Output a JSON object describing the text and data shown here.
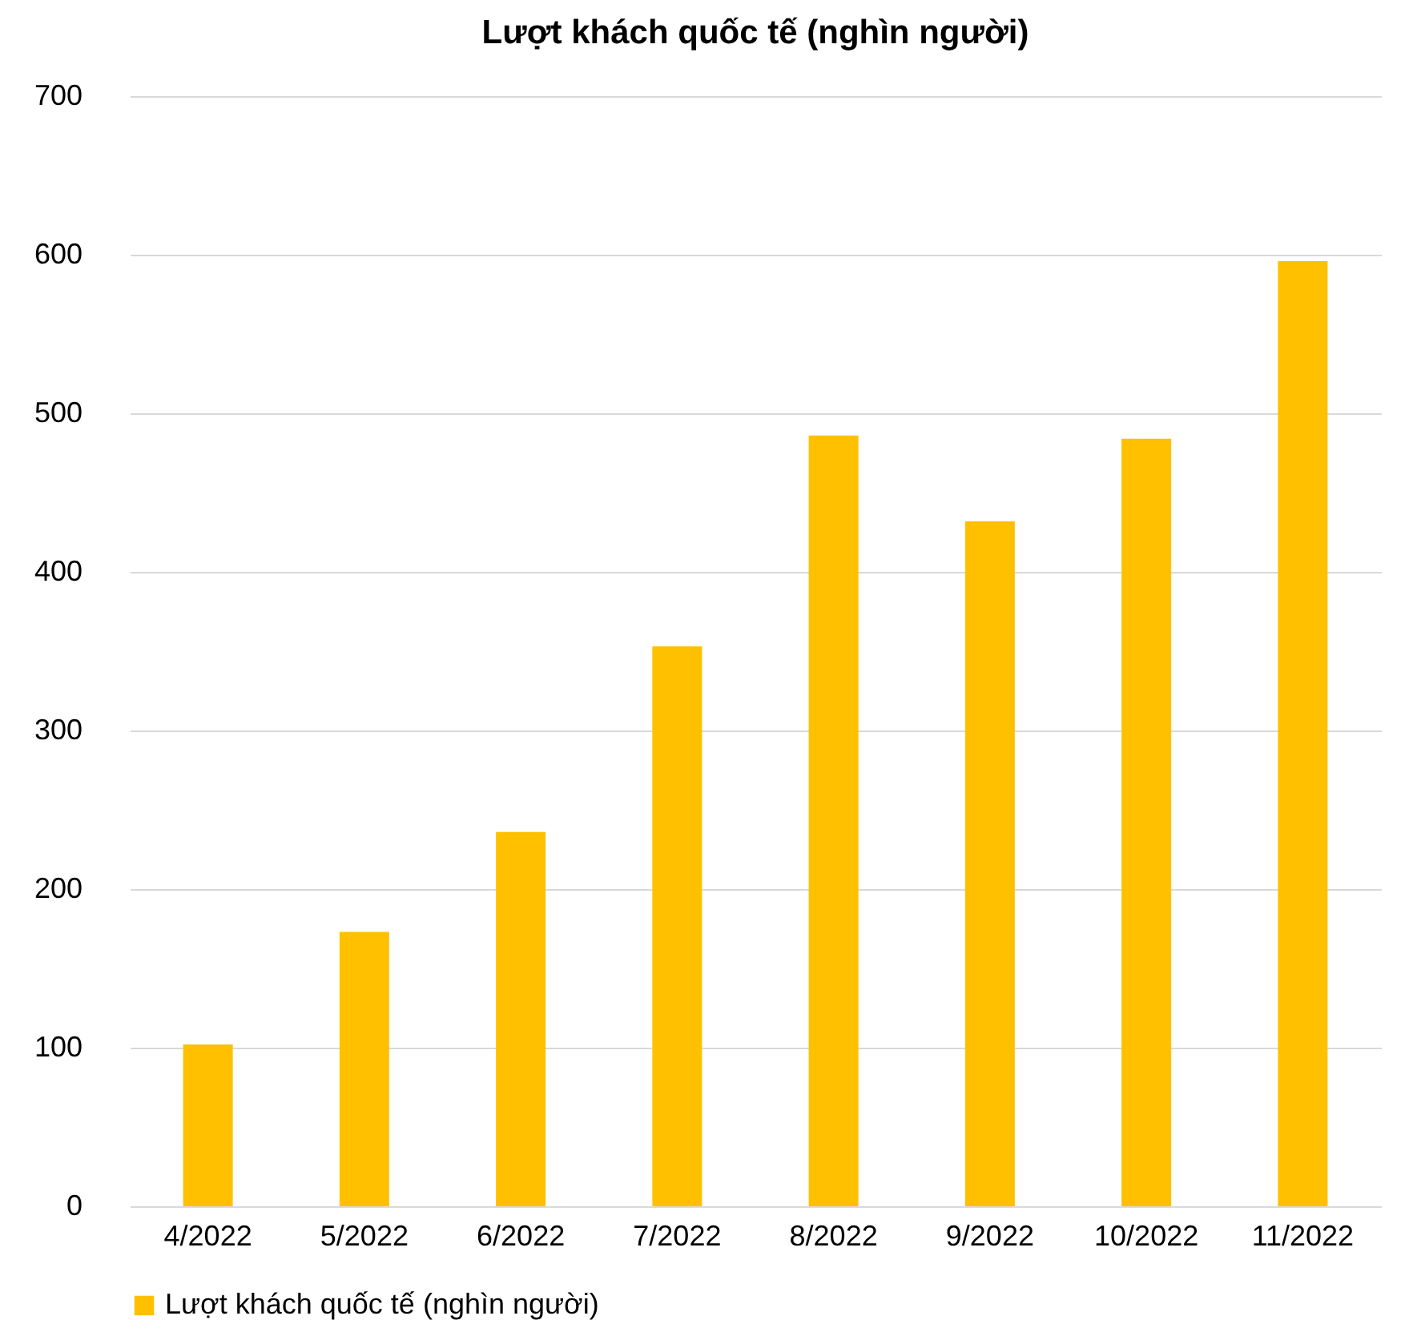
{
  "chart_data": {
    "type": "bar",
    "title": "Lượt khách quốc tế (nghìn người)",
    "categories": [
      "4/2022",
      "5/2022",
      "6/2022",
      "7/2022",
      "8/2022",
      "9/2022",
      "10/2022",
      "11/2022"
    ],
    "series": [
      {
        "name": "Lượt khách quốc tế (nghìn người)",
        "color": "#ffc000",
        "values": [
          102,
          173,
          236,
          353,
          486,
          432,
          484,
          596
        ]
      }
    ],
    "ylim": [
      0,
      700
    ],
    "yticks": [
      0,
      100,
      200,
      300,
      400,
      500,
      600,
      700
    ],
    "grid": "y",
    "legend": "bottom"
  }
}
